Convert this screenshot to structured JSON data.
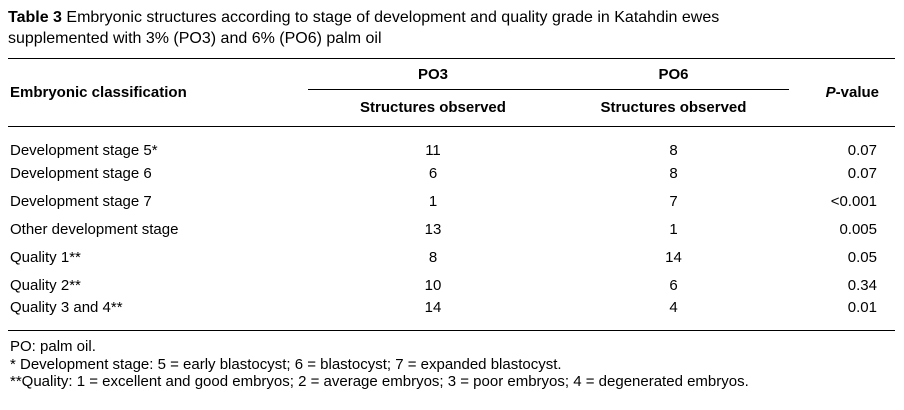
{
  "caption": {
    "label": "Table 3",
    "line1": " Embryonic structures according to stage of development and quality grade in Katahdin ewes",
    "line2": "supplemented with 3% (PO3) and 6% (PO6) palm oil"
  },
  "table": {
    "classification_header": "Embryonic classification",
    "group_headers": {
      "po3": "PO3",
      "po6": "PO6"
    },
    "sub_header": "Structures observed",
    "pvalue_header": {
      "italic": "P",
      "rest": "-value"
    },
    "rows": [
      {
        "label": "Development stage 5*",
        "po3": "11",
        "po6": "8",
        "p": "0.07"
      },
      {
        "label": "Development stage 6",
        "po3": "6",
        "po6": "8",
        "p": "0.07"
      },
      {
        "label": "Development stage 7",
        "po3": "1",
        "po6": "7",
        "p": "<0.001"
      },
      {
        "label": "Other development stage",
        "po3": "13",
        "po6": "1",
        "p": "0.005"
      },
      {
        "label": "Quality 1**",
        "po3": "8",
        "po6": "14",
        "p": "0.05"
      },
      {
        "label": "Quality 2**",
        "po3": "10",
        "po6": "6",
        "p": "0.34"
      },
      {
        "label": "Quality 3 and 4**",
        "po3": "14",
        "po6": "4",
        "p": "0.01"
      }
    ],
    "footnotes": [
      "PO: palm oil.",
      "* Development stage: 5 = early blastocyst; 6 = blastocyst; 7 = expanded blastocyst.",
      "**Quality: 1 = excellent and good embryos; 2 = average embryos; 3 = poor embryos; 4 = degenerated embryos."
    ]
  }
}
